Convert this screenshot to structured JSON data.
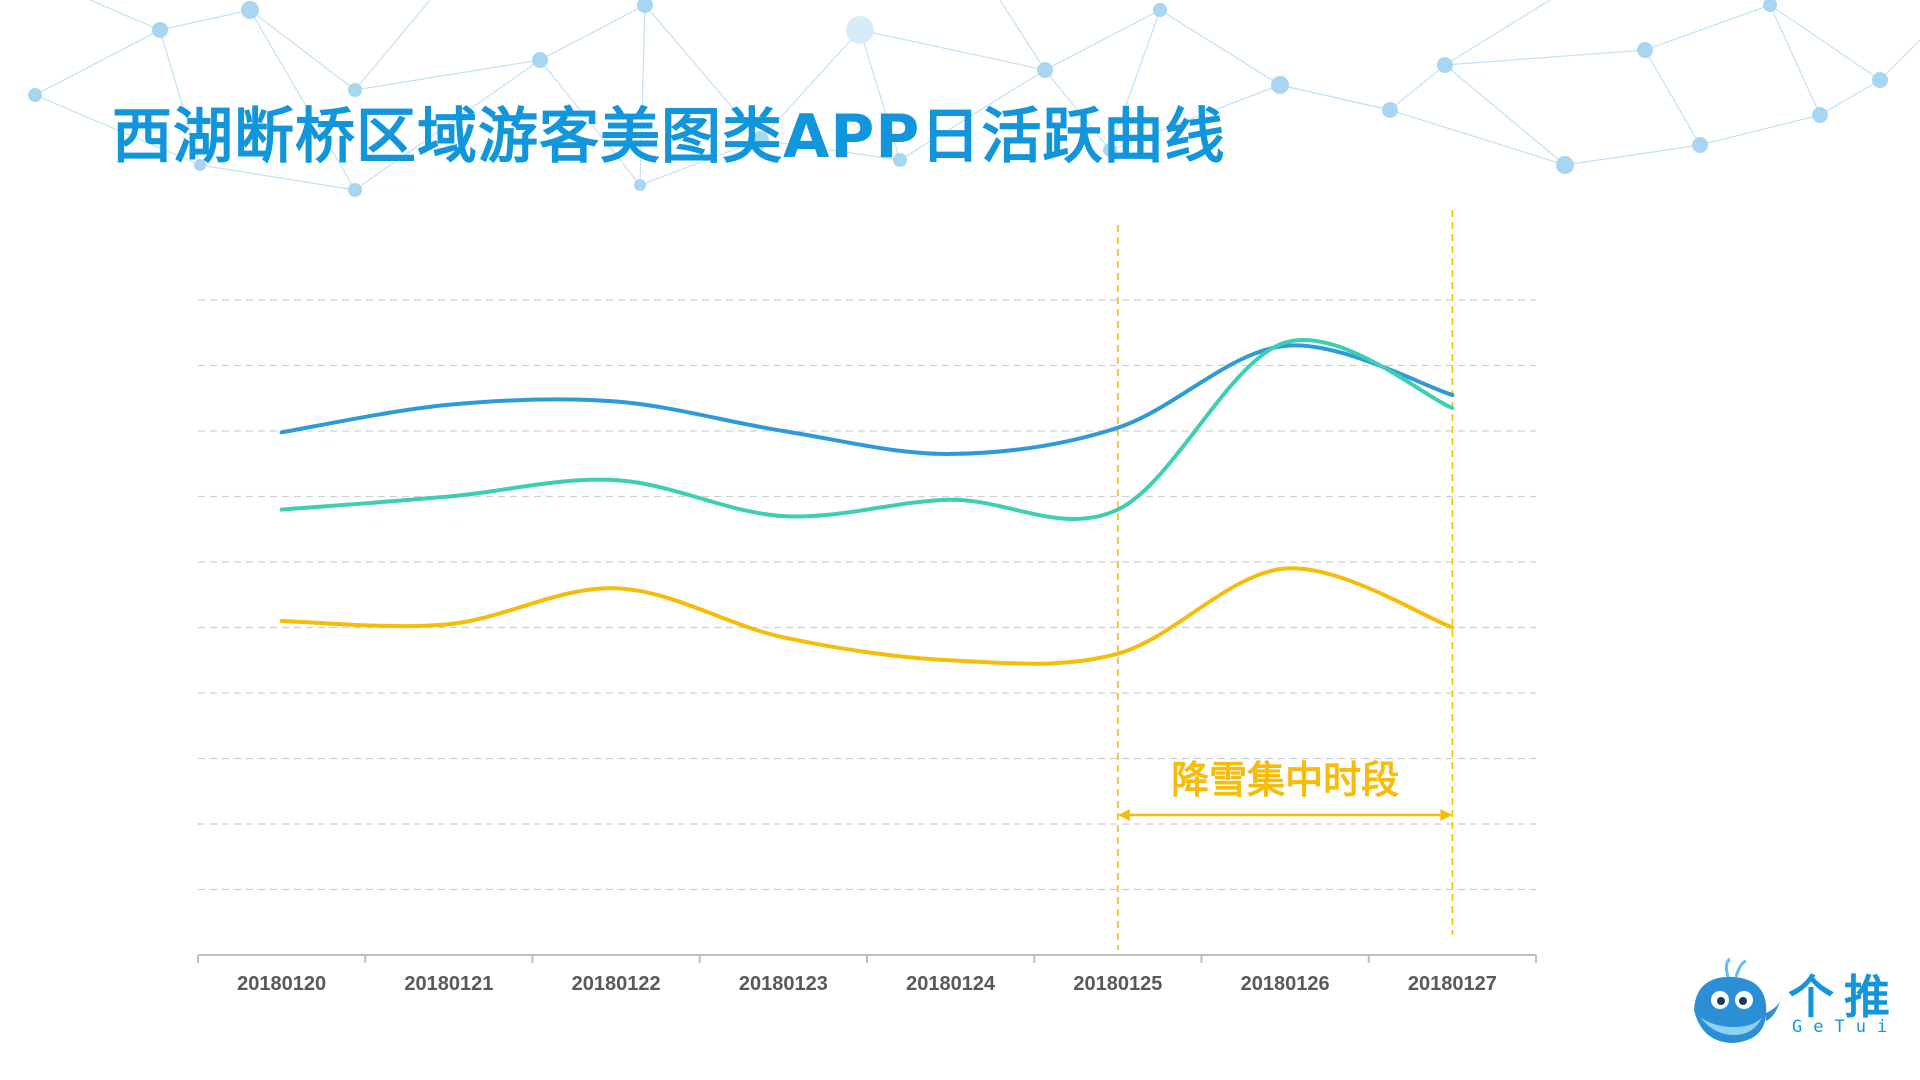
{
  "page": {
    "title": "西湖断桥区域游客美图类APP日活跃曲线"
  },
  "chart_data": {
    "type": "line",
    "title": "西湖断桥区域游客美图类APP日活跃曲线",
    "categories": [
      "20180120",
      "20180121",
      "20180122",
      "20180123",
      "20180124",
      "20180125",
      "20180126",
      "20180127"
    ],
    "ylim": [
      0,
      10
    ],
    "grid": true,
    "series": [
      {
        "color": "#2e9ad8",
        "values": [
          7.98,
          8.4,
          8.45,
          8.0,
          7.65,
          8.05,
          9.3,
          8.55
        ]
      },
      {
        "color": "#3ecfb2",
        "values": [
          6.8,
          7.0,
          7.25,
          6.7,
          6.95,
          6.8,
          9.35,
          8.35
        ]
      },
      {
        "color": "#f5bd09",
        "values": [
          5.1,
          5.05,
          5.6,
          4.85,
          4.5,
          4.6,
          5.9,
          5.0
        ]
      }
    ],
    "annotation": {
      "label": "降雪集中时段",
      "from": "20180125",
      "to": "20180127",
      "color": "#f5bd09"
    }
  },
  "logo": {
    "cn": "个推",
    "en": "GeTui"
  }
}
